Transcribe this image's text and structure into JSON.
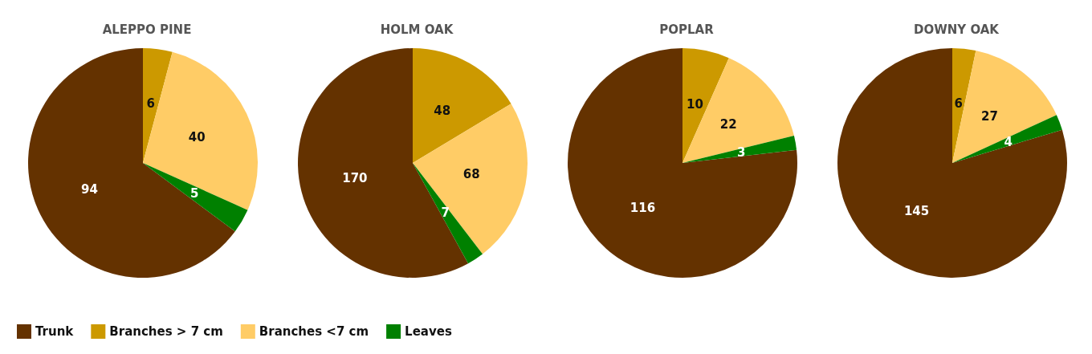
{
  "chart_data": [
    {
      "type": "pie",
      "title": "ALEPPO PINE",
      "categories": [
        "Trunk",
        "Branches > 7 cm",
        "Branches <7 cm",
        "Leaves"
      ],
      "values": [
        94,
        6,
        40,
        5
      ],
      "colors": [
        "#643200",
        "#cc9900",
        "#ffcc66",
        "#008000"
      ],
      "data_labels": true,
      "legend": "bottom"
    },
    {
      "type": "pie",
      "title": "HOLM OAK",
      "values": [
        170,
        48,
        68,
        7
      ],
      "colors": [
        "#643200",
        "#cc9900",
        "#ffcc66",
        "#008000"
      ],
      "data_labels": true
    },
    {
      "type": "pie",
      "title": "POPLAR",
      "values": [
        116,
        10,
        22,
        3
      ],
      "colors": [
        "#643200",
        "#cc9900",
        "#ffcc66",
        "#008000"
      ],
      "data_labels": true
    },
    {
      "type": "pie",
      "title": "DOWNY OAK",
      "values": [
        145,
        6,
        27,
        4
      ],
      "colors": [
        "#643200",
        "#cc9900",
        "#ffcc66",
        "#008000"
      ],
      "data_labels": true
    }
  ]
}
